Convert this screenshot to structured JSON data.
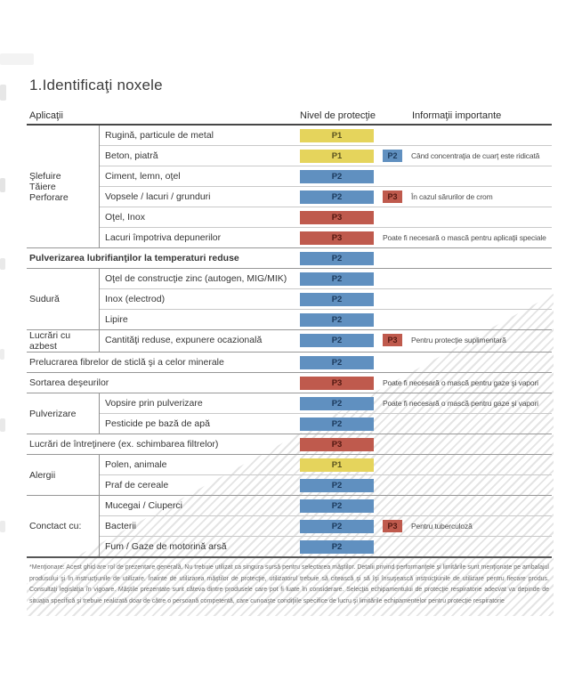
{
  "title": "1.Identificaţi noxele",
  "columns": {
    "applications": "Aplicaţii",
    "protection": "Nivel de protecţie",
    "info": "Informaţii importante"
  },
  "table": {
    "levels": {
      "P1": {
        "bg": "#e5d45c",
        "text": "#59521f"
      },
      "P2": {
        "bg": "#6090c0",
        "text": "#1c3a5c"
      },
      "P3": {
        "bg": "#bf5a4d",
        "text": "#521811"
      }
    },
    "sections": [
      {
        "group": "Şlefuire\nTăiere\nPerforare",
        "rows": [
          {
            "label": "Rugină, particule de metal",
            "level": "P1"
          },
          {
            "label": "Beton, piatră",
            "level": "P1",
            "level2": "P2",
            "info": "Când concentraţia de cuarţ este ridicată"
          },
          {
            "label": "Ciment, lemn, oţel",
            "level": "P2"
          },
          {
            "label": "Vopsele / lacuri / grunduri",
            "level": "P2",
            "level2": "P3",
            "info": "În cazul sărurilor de crom"
          },
          {
            "label": "Oţel, Inox",
            "level": "P3"
          },
          {
            "label": "Lacuri împotriva depunerilor",
            "level": "P3",
            "info": "Poate fi necesară o mască pentru aplicaţii speciale"
          }
        ]
      },
      {
        "full": true,
        "bold": true,
        "label": "Pulverizarea lubrifianţilor la temperaturi reduse",
        "level": "P2"
      },
      {
        "group": "Sudură",
        "rows": [
          {
            "label": "Oţel de construcţie zinc (autogen, MIG/MIK)",
            "level": "P2"
          },
          {
            "label": "Inox (electrod)",
            "level": "P2"
          },
          {
            "label": "Lipire",
            "level": "P2"
          }
        ]
      },
      {
        "group": "Lucrări cu azbest",
        "rows": [
          {
            "label": "Cantităţi reduse, expunere ocazională",
            "level": "P2",
            "level2": "P3",
            "info": "Pentru protecţie suplimentară"
          }
        ]
      },
      {
        "full": true,
        "label": "Prelucrarea fibrelor de sticlă şi a celor minerale",
        "level": "P2"
      },
      {
        "full": true,
        "label": "Sortarea deşeurilor",
        "level": "P3",
        "info": "Poate fi necesară o mască pentru gaze şi vapori"
      },
      {
        "group": "Pulverizare",
        "rows": [
          {
            "label": "Vopsire prin pulverizare",
            "level": "P2",
            "info": "Poate fi necesară o mască pentru gaze şi vapori"
          },
          {
            "label": "Pesticide pe bază de apă",
            "level": "P2"
          }
        ]
      },
      {
        "full": true,
        "label": "Lucrări de întreţinere (ex. schimbarea filtrelor)",
        "level": "P3"
      },
      {
        "group": "Alergii",
        "rows": [
          {
            "label": "Polen, animale",
            "level": "P1"
          },
          {
            "label": "Praf de cereale",
            "level": "P2"
          }
        ]
      },
      {
        "group": "Conctact cu:",
        "rows": [
          {
            "label": "Mucegai / Ciuperci",
            "level": "P2"
          },
          {
            "label": "Bacterii",
            "level": "P2",
            "level2": "P3",
            "info": "Pentru tuberculoză"
          },
          {
            "label": "Fum / Gaze de motorină arsă",
            "level": "P2"
          }
        ]
      }
    ]
  },
  "footnote": "*Menţionare: Acest ghid are rol de prezentare generală. Nu trebuie utilizat ca singura sursă pentru selectarea măştilor. Detalii privind performanţele şi limitările sunt menţionate pe ambalajul produsului şi în instrucţiunile de utilizare. Înainte de utilizarea măştilor de protecţie, utilizatorul trebuie să citească şi să îşi însuşească instrucţiunile de utilizare pentru fiecare produs. Consultaţi legislaţia în vigoare. Măştile prezentate sunt câteva dintre produsele care pot fi luate în considerare. Selecţia echipamentului de protecţie respiratorie adecvat va depinde de situaţia specifică şi trebuie realizată doar de către o persoană competentă, care cunoaşte condiţiile specifice de lucru şi limitările echipamentelor pentru protecţie respiratorie"
}
